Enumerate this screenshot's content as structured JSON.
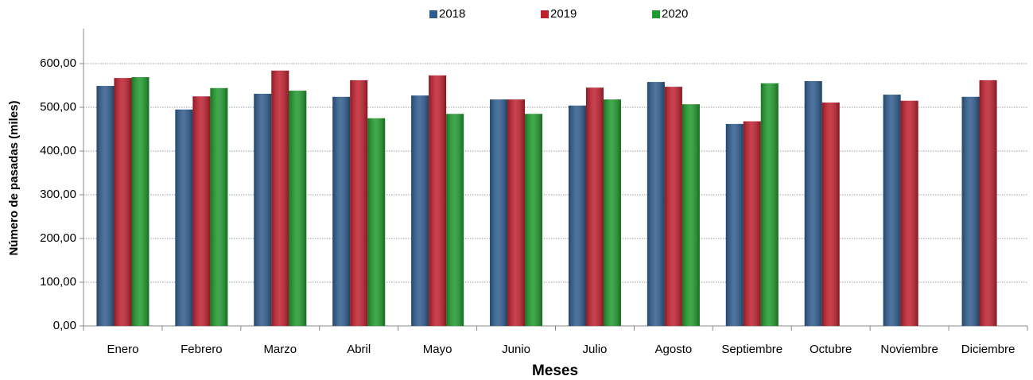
{
  "chart_data": {
    "type": "bar",
    "x_title": "Meses",
    "y_title": "Número de pasadas (miles)",
    "categories": [
      "Enero",
      "Febrero",
      "Marzo",
      "Abril",
      "Mayo",
      "Junio",
      "Julio",
      "Agosto",
      "Septiembre",
      "Octubre",
      "Noviembre",
      "Diciembre"
    ],
    "series": [
      {
        "name": "2018",
        "color": "#2e5c8e",
        "values": [
          549,
          495,
          531,
          524,
          527,
          518,
          504,
          558,
          462,
          560,
          529,
          524
        ]
      },
      {
        "name": "2019",
        "color": "#c0202e",
        "values": [
          567,
          525,
          584,
          562,
          573,
          518,
          545,
          547,
          468,
          511,
          515,
          562
        ]
      },
      {
        "name": "2020",
        "color": "#1f9a2c",
        "values": [
          569,
          544,
          538,
          475,
          485,
          485,
          518,
          507,
          555,
          null,
          null,
          null
        ]
      }
    ],
    "ylim": [
      0,
      680
    ],
    "yticks": [
      {
        "value": 0,
        "label": "0,00"
      },
      {
        "value": 100,
        "label": "100,00"
      },
      {
        "value": 200,
        "label": "200,00"
      },
      {
        "value": 300,
        "label": "300,00"
      },
      {
        "value": 400,
        "label": "400,00"
      },
      {
        "value": 500,
        "label": "500,00"
      },
      {
        "value": 600,
        "label": "600,00"
      }
    ],
    "grid": true,
    "legend": "top"
  }
}
